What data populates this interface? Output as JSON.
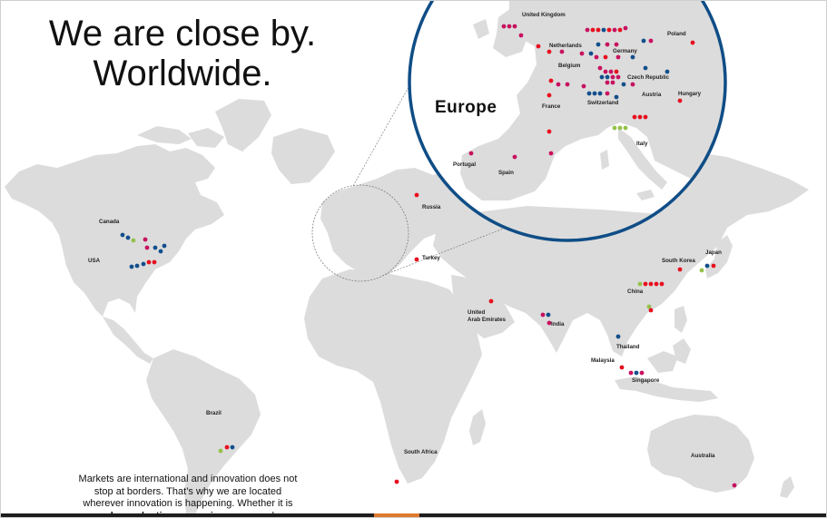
{
  "headline": {
    "line1": "We are close by.",
    "line2": "Worldwide."
  },
  "intro": {
    "line1": "Markets are international and innovation does not",
    "line2": "stop at borders. That’s why we are located",
    "line3": "wherever innovation is happening. Whether it is",
    "line4_bold": "research, production or service",
    "line4_rest": " – our employees"
  },
  "inset": {
    "title": "Europe"
  },
  "colors": {
    "land": "#dcdcdc",
    "red": "#e8101f",
    "magenta": "#c8125f",
    "blue": "#124f8c",
    "green": "#95c24b",
    "ring": "#0f4d86"
  },
  "world_labels": {
    "canada": "Canada",
    "usa": "USA",
    "brazil": "Brazil",
    "russia": "Russia",
    "turkey": "Turkey",
    "uae1": "United",
    "uae2": "Arab Emirates",
    "india": "India",
    "china": "China",
    "south_korea": "South Korea",
    "japan": "Japan",
    "thailand": "Thailand",
    "malaysia": "Malaysia",
    "singapore": "Singapore",
    "south_africa": "South Africa",
    "australia": "Australia"
  },
  "europe_labels": {
    "uk": "United Kingdom",
    "netherlands": "Netherlands",
    "germany": "Germany",
    "poland": "Poland",
    "belgium": "Belgium",
    "czech": "Czech Republic",
    "austria": "Austria",
    "hungary": "Hungary",
    "switzerland": "Switzerland",
    "france": "France",
    "italy": "Italy",
    "portugal": "Portugal",
    "spain": "Spain"
  }
}
